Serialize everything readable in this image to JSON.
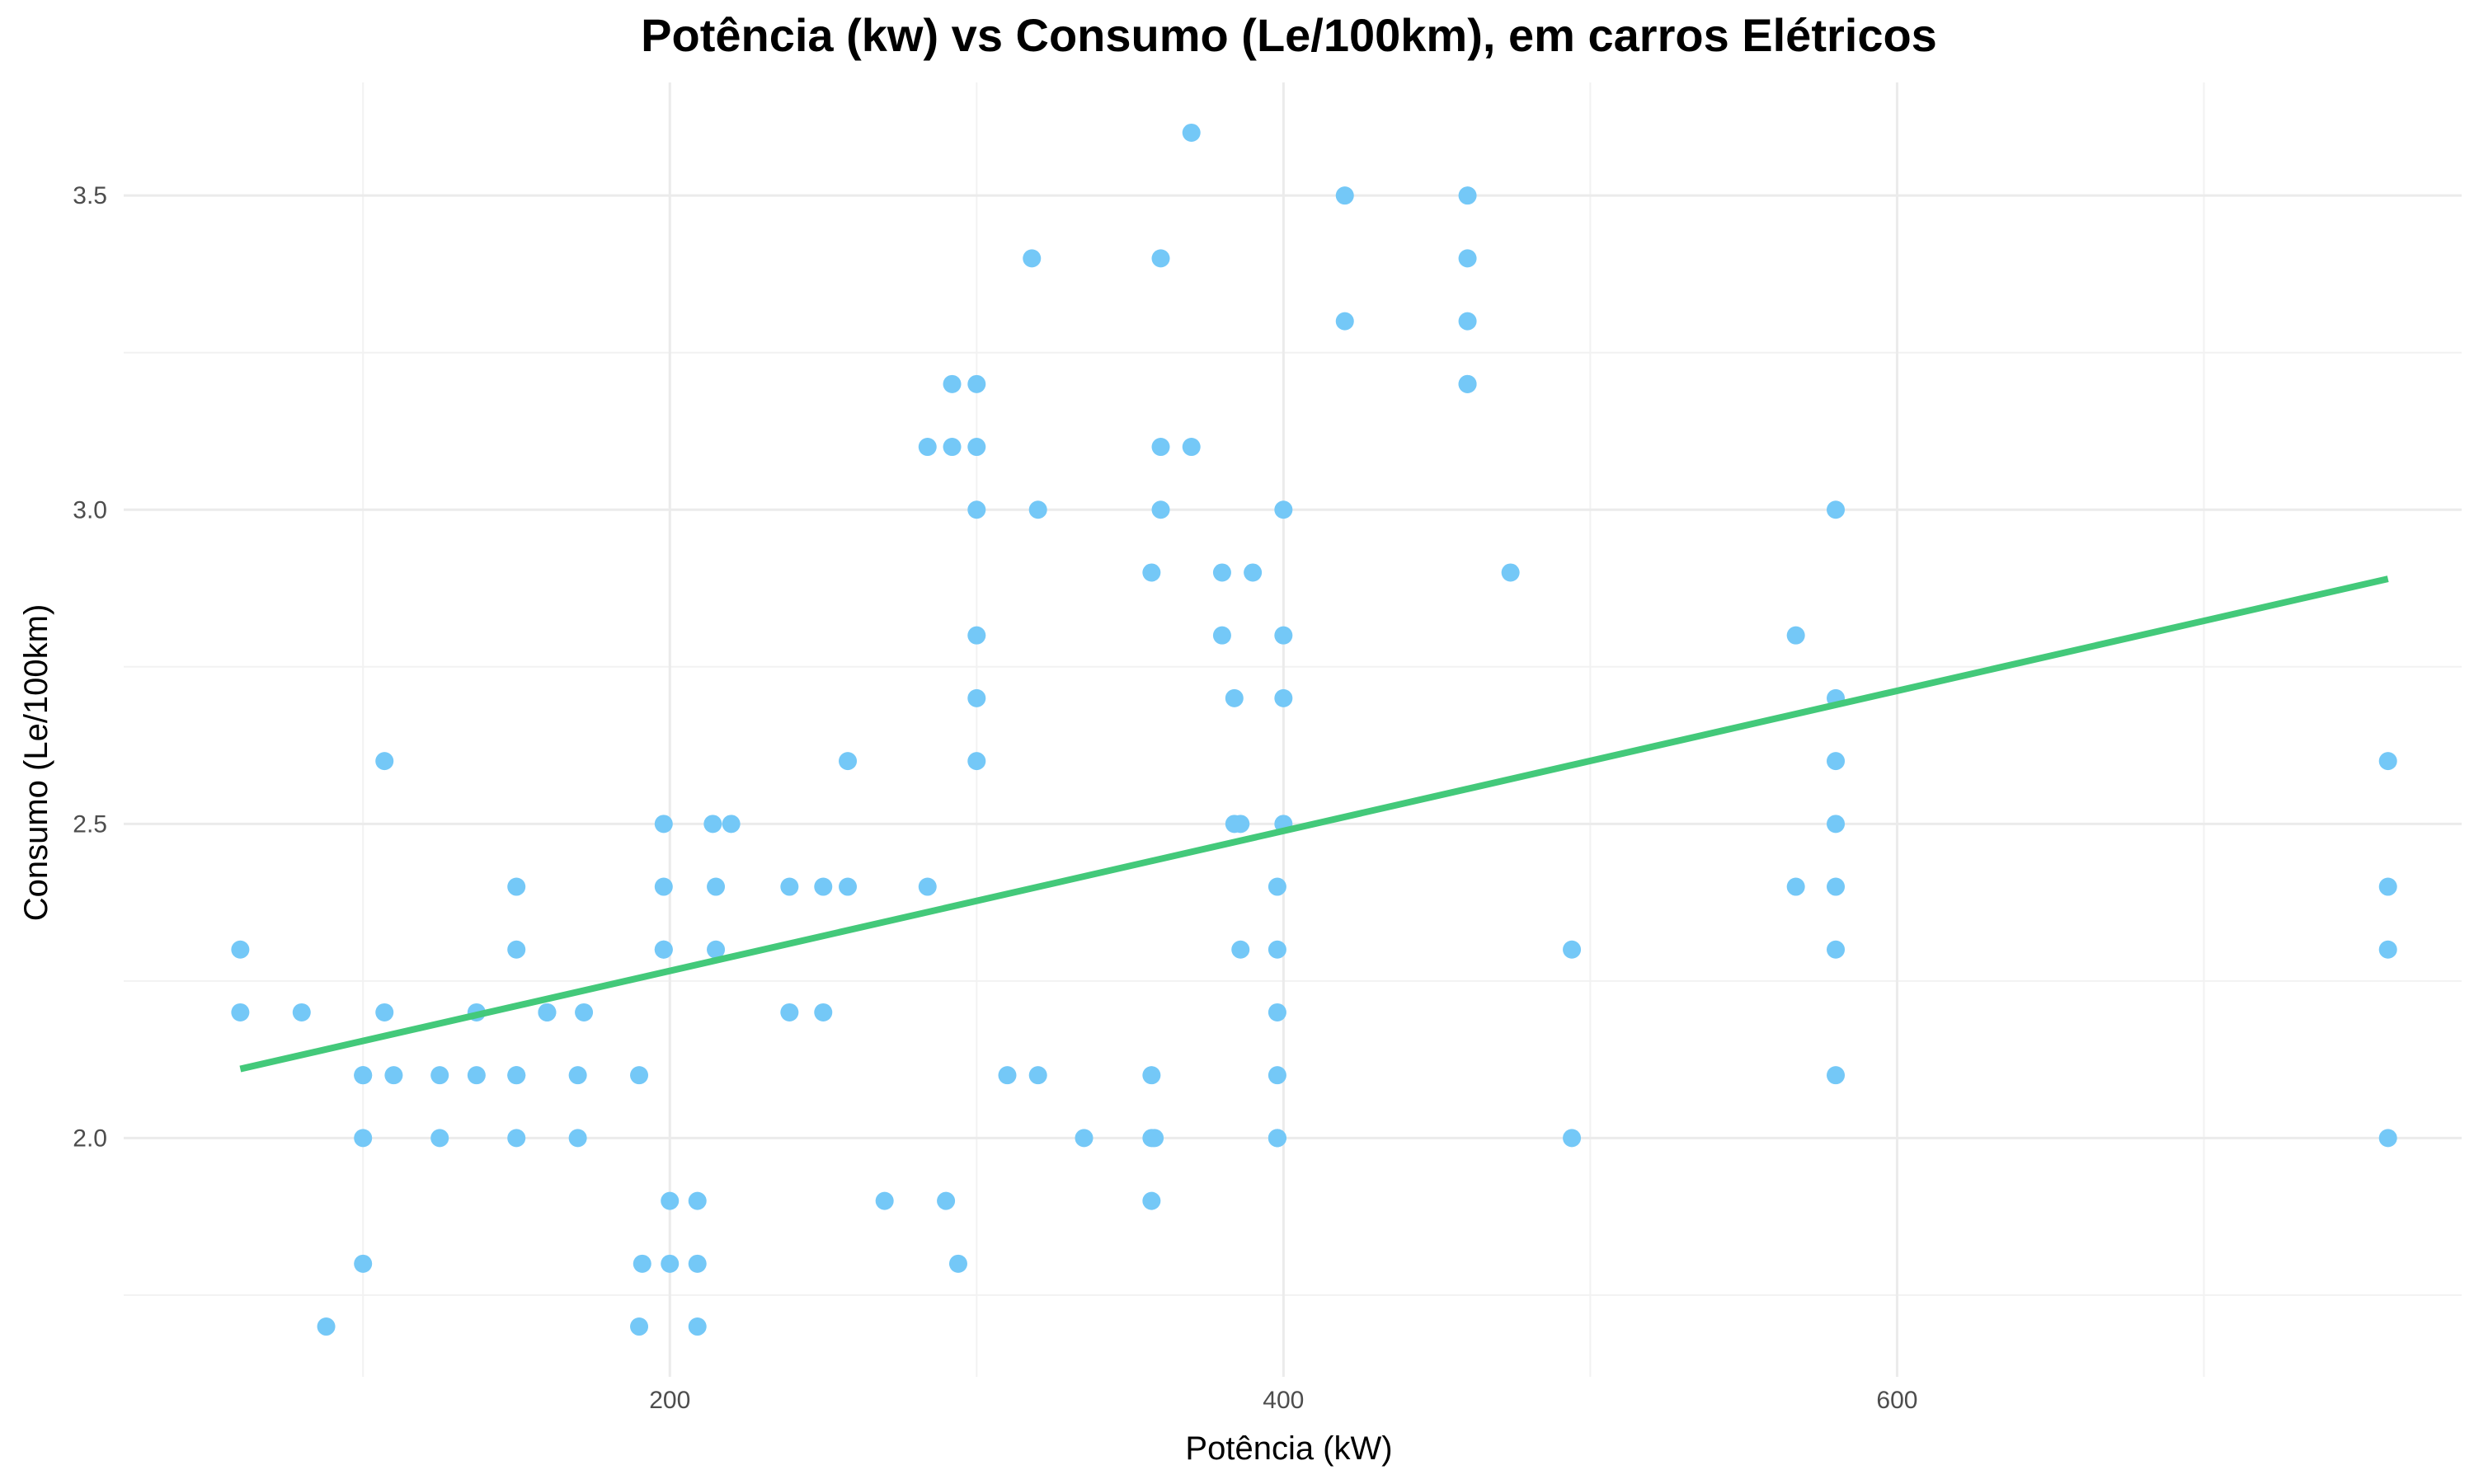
{
  "chart_data": {
    "type": "scatter",
    "title": "Potência (kw) vs Consumo (Le/100km), em carros Elétricos",
    "xlabel": "Potência (kW)",
    "ylabel": "Consumo (Le/100km)",
    "xlim": [
      22,
      784
    ],
    "ylim": [
      1.62,
      3.68
    ],
    "x_ticks": [
      200,
      400,
      600
    ],
    "y_ticks": [
      2.0,
      2.5,
      3.0,
      3.5
    ],
    "x_tick_labels": [
      "200",
      "400",
      "600"
    ],
    "y_tick_labels": [
      "2.0",
      "2.5",
      "3.0",
      "3.5"
    ],
    "grid": true,
    "point_color": "#74c8f7",
    "trend_color": "#43c97a",
    "trend_line": {
      "x": [
        60,
        760
      ],
      "y": [
        2.11,
        2.89
      ]
    },
    "points": {
      "x": [
        60,
        60,
        80,
        88,
        100,
        100,
        100,
        100,
        107,
        107,
        110,
        125,
        125,
        137,
        137,
        150,
        150,
        150,
        150,
        150,
        160,
        160,
        170,
        170,
        172,
        190,
        190,
        191,
        198,
        198,
        198,
        198,
        200,
        200,
        209,
        209,
        209,
        214,
        215,
        215,
        220,
        239,
        239,
        250,
        250,
        258,
        258,
        284,
        284,
        270,
        290,
        292,
        292,
        294,
        300,
        300,
        300,
        300,
        300,
        300,
        310,
        318,
        320,
        320,
        335,
        357,
        357,
        357,
        357,
        358,
        360,
        360,
        360,
        370,
        370,
        380,
        380,
        384,
        384,
        386,
        386,
        390,
        398,
        398,
        398,
        398,
        398,
        398,
        398,
        400,
        400,
        400,
        400,
        420,
        420,
        460,
        460,
        460,
        460,
        460,
        474,
        494,
        494,
        567,
        567,
        580,
        580,
        580,
        580,
        580,
        580,
        580,
        760,
        760,
        760,
        760
      ],
      "y": [
        2.2,
        2.3,
        2.2,
        1.7,
        2.1,
        2.0,
        1.8,
        2.1,
        2.6,
        2.2,
        2.1,
        2.1,
        2.0,
        2.1,
        2.2,
        2.4,
        2.3,
        2.1,
        2.1,
        2.0,
        2.2,
        2.2,
        2.1,
        2.0,
        2.2,
        2.1,
        1.7,
        1.8,
        2.5,
        2.4,
        2.3,
        2.3,
        1.9,
        1.8,
        1.9,
        1.8,
        1.7,
        2.5,
        2.4,
        2.3,
        2.5,
        2.4,
        2.2,
        2.4,
        2.2,
        2.6,
        2.4,
        3.1,
        2.4,
        1.9,
        1.9,
        3.2,
        3.1,
        1.8,
        3.2,
        3.1,
        3.0,
        2.8,
        2.7,
        2.6,
        2.1,
        3.4,
        3.0,
        2.1,
        2.0,
        2.9,
        2.1,
        2.0,
        1.9,
        2.0,
        3.4,
        3.1,
        3.0,
        3.6,
        3.1,
        2.9,
        2.8,
        2.7,
        2.5,
        2.5,
        2.3,
        2.9,
        2.4,
        2.3,
        2.2,
        2.1,
        2.0,
        2.0,
        2.0,
        3.0,
        2.8,
        2.7,
        2.5,
        3.5,
        3.3,
        3.5,
        3.4,
        3.3,
        3.2,
        3.2,
        2.9,
        2.3,
        2.0,
        2.8,
        2.4,
        3.0,
        2.7,
        2.6,
        2.5,
        2.4,
        2.3,
        2.1,
        2.6,
        2.4,
        2.3,
        2.0
      ]
    }
  }
}
